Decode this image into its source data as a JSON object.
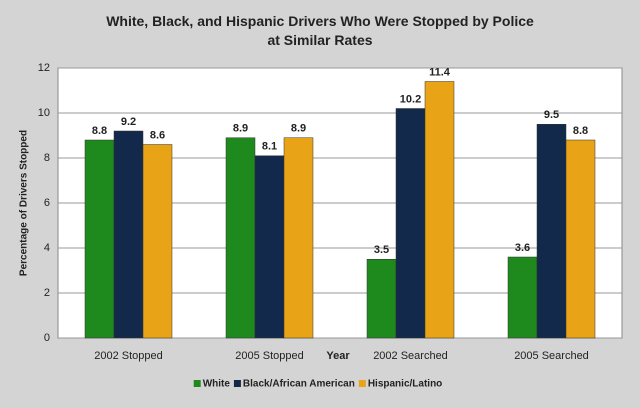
{
  "chart_data": {
    "type": "bar",
    "title": "White, Black, and Hispanic Drivers Who Were Stopped by Police at Similar Rates",
    "x_label": "Year",
    "y_label": "Percentage of Drivers Stopped",
    "categories": [
      "2002 Stopped",
      "2005 Stopped",
      "2002 Searched",
      "2005 Searched"
    ],
    "series": [
      {
        "name": "White",
        "color": "#1e8a1e",
        "values": [
          8.8,
          8.9,
          3.5,
          3.6
        ]
      },
      {
        "name": "Black/African American",
        "color": "#13294b",
        "values": [
          9.2,
          8.1,
          10.2,
          9.5
        ]
      },
      {
        "name": "Hispanic/Latino",
        "color": "#e8a317",
        "values": [
          8.6,
          8.9,
          11.4,
          8.8
        ]
      }
    ],
    "ylim": [
      0,
      12
    ],
    "yticks": [
      0,
      2,
      4,
      6,
      8,
      10,
      12
    ],
    "grid": true,
    "legend": "bottom"
  }
}
